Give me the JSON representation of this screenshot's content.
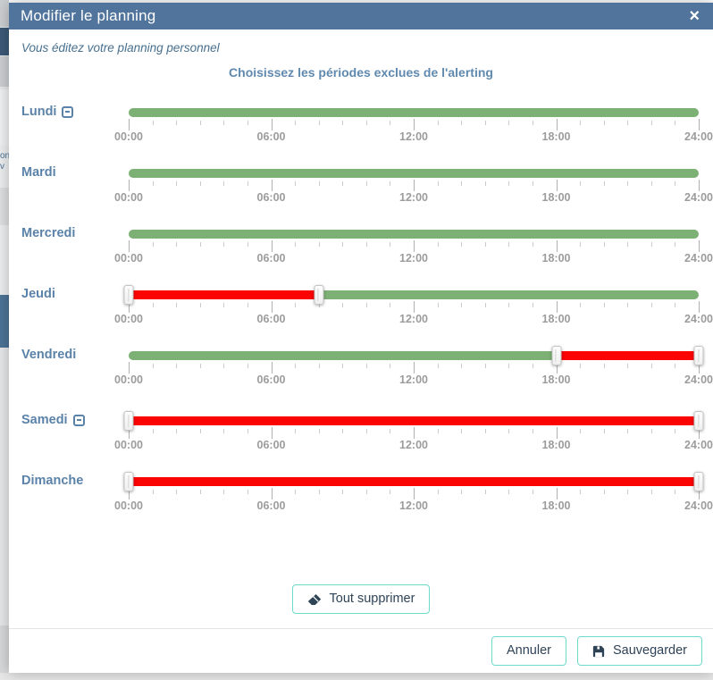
{
  "colors": {
    "header_bg": "#50749b",
    "accent_blue": "#5b82a8",
    "included_green": "#7cb074",
    "excluded_red": "#fa0404",
    "teal_border": "#6cdccd",
    "button_text": "#2f4357"
  },
  "modal": {
    "title": "Modifier le planning",
    "close_glyph": "×",
    "subtitle": "Vous éditez votre planning personnel",
    "heading": "Choisissez les périodes exclues de l'alerting"
  },
  "slider": {
    "hours_total": 24,
    "tick_step_hours": 1,
    "major_tick_hours": 6,
    "tick_labels": [
      {
        "hour": 0,
        "label": "00:00"
      },
      {
        "hour": 6,
        "label": "06:00"
      },
      {
        "hour": 12,
        "label": "12:00"
      },
      {
        "hour": 18,
        "label": "18:00"
      },
      {
        "hour": 24,
        "label": "24:00"
      }
    ]
  },
  "days": [
    {
      "label": "Lundi",
      "collapsible": true,
      "gap_before": false,
      "segments": [
        {
          "from_hour": 0,
          "to_hour": 24,
          "state": "included"
        }
      ],
      "handle_hours": []
    },
    {
      "label": "Mardi",
      "collapsible": false,
      "gap_before": false,
      "segments": [
        {
          "from_hour": 0,
          "to_hour": 24,
          "state": "included"
        }
      ],
      "handle_hours": []
    },
    {
      "label": "Mercredi",
      "collapsible": false,
      "gap_before": false,
      "segments": [
        {
          "from_hour": 0,
          "to_hour": 24,
          "state": "included"
        }
      ],
      "handle_hours": []
    },
    {
      "label": "Jeudi",
      "collapsible": false,
      "gap_before": false,
      "segments": [
        {
          "from_hour": 0,
          "to_hour": 8,
          "state": "excluded"
        },
        {
          "from_hour": 8,
          "to_hour": 24,
          "state": "included"
        }
      ],
      "handle_hours": [
        0,
        8
      ]
    },
    {
      "label": "Vendredi",
      "collapsible": false,
      "gap_before": false,
      "segments": [
        {
          "from_hour": 0,
          "to_hour": 18,
          "state": "included"
        },
        {
          "from_hour": 18,
          "to_hour": 24,
          "state": "excluded"
        }
      ],
      "handle_hours": [
        18,
        24
      ]
    },
    {
      "label": "Samedi",
      "collapsible": true,
      "gap_before": true,
      "segments": [
        {
          "from_hour": 0,
          "to_hour": 24,
          "state": "excluded"
        }
      ],
      "handle_hours": [
        0,
        24
      ]
    },
    {
      "label": "Dimanche",
      "collapsible": false,
      "gap_before": false,
      "segments": [
        {
          "from_hour": 0,
          "to_hour": 24,
          "state": "excluded"
        }
      ],
      "handle_hours": [
        0,
        24
      ]
    }
  ],
  "actions": {
    "clear_all_label": "Tout supprimer",
    "cancel_label": "Annuler",
    "save_label": "Sauvegarder"
  },
  "background_page": {
    "left_sliver_fragments": [
      "on",
      "v"
    ]
  }
}
